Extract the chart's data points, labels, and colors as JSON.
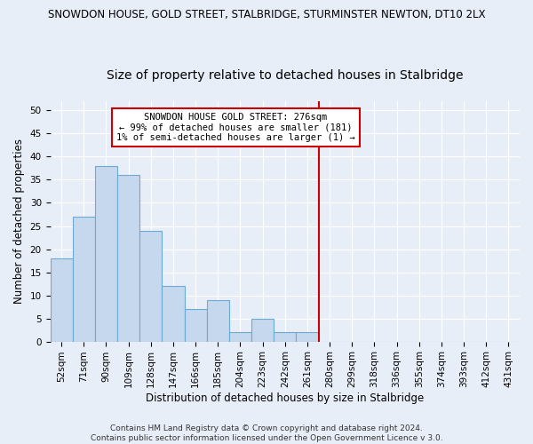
{
  "title": "SNOWDON HOUSE, GOLD STREET, STALBRIDGE, STURMINSTER NEWTON, DT10 2LX",
  "subtitle": "Size of property relative to detached houses in Stalbridge",
  "xlabel": "Distribution of detached houses by size in Stalbridge",
  "ylabel": "Number of detached properties",
  "bar_labels": [
    "52sqm",
    "71sqm",
    "90sqm",
    "109sqm",
    "128sqm",
    "147sqm",
    "166sqm",
    "185sqm",
    "204sqm",
    "223sqm",
    "242sqm",
    "261sqm",
    "280sqm",
    "299sqm",
    "318sqm",
    "336sqm",
    "355sqm",
    "374sqm",
    "393sqm",
    "412sqm",
    "431sqm"
  ],
  "bar_values": [
    18,
    27,
    38,
    36,
    24,
    12,
    7,
    9,
    2,
    5,
    2,
    2,
    0,
    0,
    0,
    0,
    0,
    0,
    0,
    0,
    0
  ],
  "bar_color": "#c5d8ee",
  "bar_edge_color": "#6aaad4",
  "marker_line_color": "#cc0000",
  "annotation_line1": "SNOWDON HOUSE GOLD STREET: 276sqm",
  "annotation_line2": "← 99% of detached houses are smaller (181)",
  "annotation_line3": "1% of semi-detached houses are larger (1) →",
  "annotation_box_color": "#ffffff",
  "annotation_box_edge_color": "#cc0000",
  "ylim": [
    0,
    52
  ],
  "yticks": [
    0,
    5,
    10,
    15,
    20,
    25,
    30,
    35,
    40,
    45,
    50
  ],
  "background_color": "#e8eef7",
  "footer_line1": "Contains HM Land Registry data © Crown copyright and database right 2024.",
  "footer_line2": "Contains public sector information licensed under the Open Government Licence v 3.0.",
  "title_fontsize": 8.5,
  "subtitle_fontsize": 10,
  "axis_label_fontsize": 8.5,
  "tick_fontsize": 7.5,
  "annotation_fontsize": 7.5,
  "footer_fontsize": 6.5
}
